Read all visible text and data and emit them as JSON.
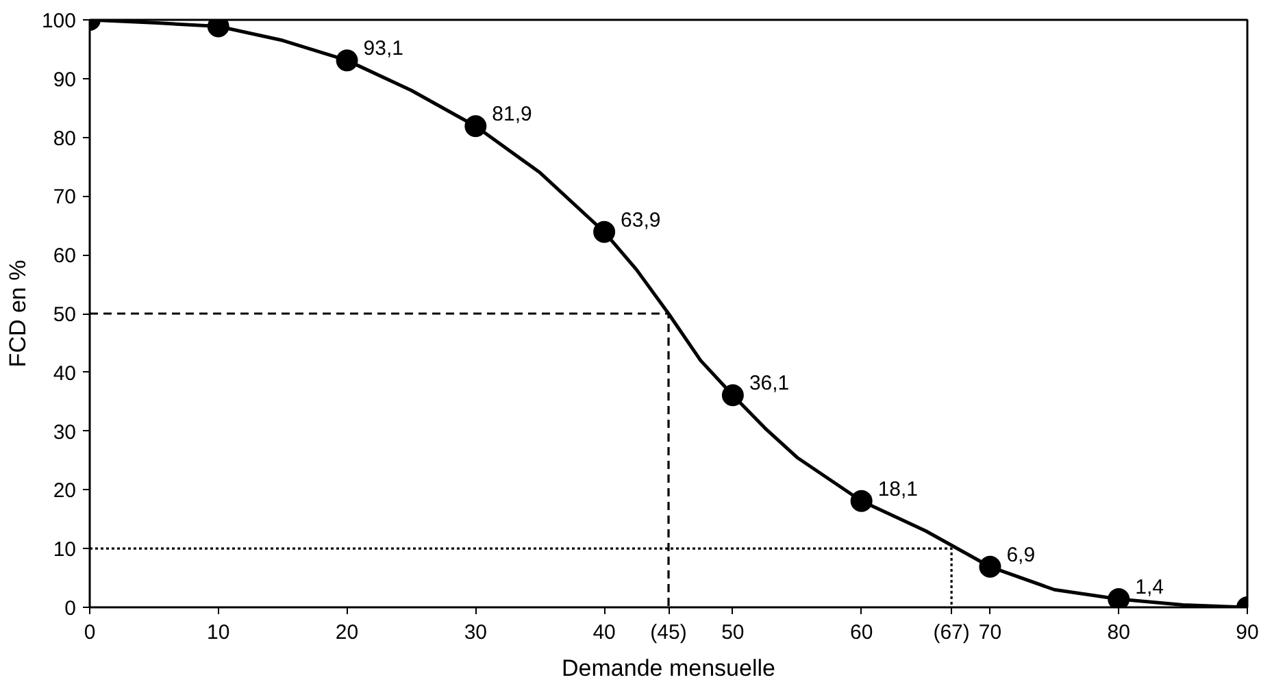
{
  "chart_data": {
    "type": "line",
    "xlabel": "Demande mensuelle",
    "ylabel": "FCD en %",
    "xlim": [
      0,
      90
    ],
    "ylim": [
      0,
      100
    ],
    "xticks": [
      0,
      10,
      20,
      30,
      40,
      {
        "value": 45,
        "label": "(45)"
      },
      50,
      60,
      {
        "value": 67,
        "label": "(67)"
      },
      70,
      80,
      90
    ],
    "yticks": [
      0,
      10,
      20,
      30,
      40,
      50,
      60,
      70,
      80,
      90,
      100
    ],
    "grid": false,
    "series": [
      {
        "color": "#000000",
        "marker": "none",
        "line_style": "solid",
        "x": [
          0,
          5,
          10,
          15,
          20,
          25,
          30,
          35,
          40,
          42.5,
          45,
          47.5,
          50,
          52.5,
          55,
          60,
          65,
          70,
          75,
          80,
          85,
          90
        ],
        "values": [
          100,
          99.5,
          98.9,
          96.5,
          93.1,
          88,
          81.9,
          74,
          63.9,
          57.5,
          50,
          42,
          36.1,
          30.5,
          25.5,
          18.1,
          13,
          6.9,
          3,
          1.4,
          0.4,
          0
        ]
      },
      {
        "type": "scatter",
        "color": "#000000",
        "marker": "circle",
        "x": [
          0,
          10,
          20,
          30,
          40,
          50,
          60,
          70,
          80,
          90
        ],
        "values": [
          100,
          98.9,
          93.1,
          81.9,
          63.9,
          36.1,
          18.1,
          6.9,
          1.4,
          0
        ],
        "value_labels": [
          null,
          null,
          "93,1",
          "81,9",
          "63,9",
          "36,1",
          "18,1",
          "6,9",
          "1,4",
          null
        ]
      },
      {
        "color": "#000000",
        "marker": "none",
        "line_style": "dashed",
        "x": [
          0,
          45,
          45
        ],
        "values": [
          50,
          50,
          0
        ]
      },
      {
        "color": "#000000",
        "marker": "none",
        "line_style": "dotted",
        "x": [
          0,
          67,
          67
        ],
        "values": [
          10,
          10,
          0
        ]
      }
    ]
  }
}
